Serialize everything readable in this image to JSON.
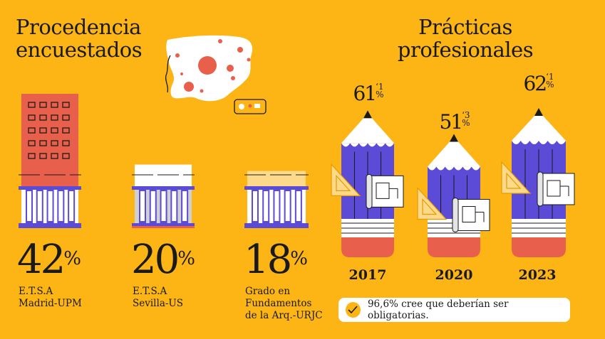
{
  "left_section": {
    "title": "Procedencia\nencuestados"
  },
  "right_section": {
    "title": "Prácticas\nprofesionales"
  },
  "chart_data": [
    {
      "type": "bar",
      "title": "Procedencia\nencuestados",
      "categories": [
        "E.T.S.A\nMadrid-UPM",
        "E.T.S.A\nSevilla-US",
        "Grado en\nFundamentos\nde la Arq.-URJC"
      ],
      "values": [
        42,
        20,
        18
      ],
      "value_labels": [
        "42",
        "20",
        "18"
      ],
      "unit": "%"
    },
    {
      "type": "bar",
      "title": "Prácticas\nprofesionales",
      "categories": [
        "2017",
        "2020",
        "2023"
      ],
      "values": [
        61.1,
        51.3,
        62.1
      ],
      "value_main": [
        "61",
        "51",
        "62"
      ],
      "value_decimal": [
        "‘1",
        "‘3",
        "‘1"
      ],
      "unit": "%"
    }
  ],
  "note": {
    "text": "96,6% cree que deberían ser obligatorias."
  },
  "colors": {
    "background": "#FCB514",
    "madrid": "#E8604C",
    "sevilla": "#FFFFFF",
    "urjc": "#FDD98A",
    "pencil": "#5B4BD6",
    "eraser": "#E8604C",
    "line": "#1a1a1a"
  },
  "icons": [
    "spain-map-icon",
    "building-icon",
    "pencil-icon",
    "set-square-icon",
    "blueprint-icon",
    "check-icon"
  ]
}
